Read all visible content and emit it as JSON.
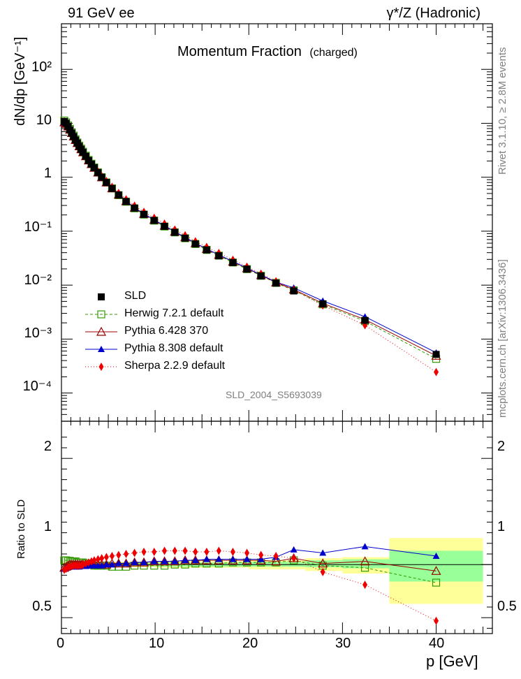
{
  "header": {
    "left": "91 GeV ee",
    "right": "γ*/Z (Hadronic)"
  },
  "title": "Momentum Fraction",
  "title_sub": "(charged)",
  "watermark": "SLD_2004_S5693039",
  "side_labels": {
    "rivet": "Rivet 3.1.10, ≥ 2.8M events",
    "mcplots": "mcplots.cern.ch [arXiv:1306.3436]"
  },
  "axes": {
    "top_ylabel": "dN/dp [GeV⁻¹]",
    "bottom_ylabel": "Ratio to SLD",
    "xlabel": "p [GeV]"
  },
  "legend": [
    {
      "label": "SLD",
      "color": "#000000",
      "marker": "filled-square",
      "dash": "none"
    },
    {
      "label": "Herwig 7.2.1 default",
      "color": "#339900",
      "marker": "open-square",
      "dash": "4,3"
    },
    {
      "label": "Pythia 6.428 370",
      "color": "#990000",
      "marker": "open-triangle",
      "dash": "none"
    },
    {
      "label": "Pythia 8.308 default",
      "color": "#0000cc",
      "marker": "filled-triangle",
      "dash": "none"
    },
    {
      "label": "Sherpa 2.2.9 default",
      "color": "#ee0000",
      "marker": "filled-diamond",
      "dash": "1,3"
    }
  ],
  "chart_data": [
    {
      "type": "scatter",
      "panel": "main",
      "x_scale": "linear",
      "y_scale": "log",
      "xlim": [
        0,
        46
      ],
      "ylim": [
        3e-05,
        700
      ],
      "xticks": [
        "0",
        "10",
        "20",
        "30",
        "40"
      ],
      "yticks": [
        "10⁻⁴",
        "10⁻³",
        "10⁻²",
        "10⁻¹",
        "1",
        "10",
        "10²"
      ],
      "x": [
        0.3,
        0.5,
        0.7,
        0.9,
        1.1,
        1.3,
        1.5,
        1.7,
        1.9,
        2.1,
        2.3,
        2.6,
        2.9,
        3.2,
        3.5,
        3.9,
        4.3,
        4.8,
        5.4,
        6.1,
        6.9,
        7.8,
        8.8,
        9.9,
        11.0,
        12.1,
        13.2,
        14.3,
        15.5,
        16.8,
        18.3,
        19.8,
        21.3,
        22.9,
        24.8,
        27.9,
        32.4,
        40.0
      ],
      "series": [
        {
          "name": "SLD",
          "values": [
            10.8,
            10.0,
            8.8,
            7.6,
            6.6,
            5.7,
            4.9,
            4.3,
            3.75,
            3.3,
            2.9,
            2.45,
            2.05,
            1.75,
            1.5,
            1.22,
            1.0,
            0.8,
            0.62,
            0.47,
            0.355,
            0.268,
            0.205,
            0.158,
            0.123,
            0.095,
            0.074,
            0.058,
            0.045,
            0.035,
            0.0262,
            0.0198,
            0.0148,
            0.0109,
            0.0078,
            0.0045,
            0.00222,
            0.00052
          ]
        },
        {
          "name": "Herwig 7.2.1 default",
          "values": [
            11.2,
            10.4,
            9.1,
            7.9,
            6.8,
            5.9,
            5.05,
            4.4,
            3.85,
            3.38,
            2.97,
            2.5,
            2.09,
            1.78,
            1.52,
            1.23,
            1.0,
            0.8,
            0.62,
            0.465,
            0.352,
            0.265,
            0.203,
            0.157,
            0.122,
            0.095,
            0.074,
            0.058,
            0.045,
            0.0352,
            0.0263,
            0.0198,
            0.0149,
            0.011,
            0.008,
            0.0044,
            0.00215,
            0.00043
          ]
        },
        {
          "name": "Pythia 6.428 370",
          "values": [
            10.4,
            9.8,
            8.7,
            7.6,
            6.6,
            5.7,
            4.9,
            4.3,
            3.75,
            3.3,
            2.9,
            2.45,
            2.05,
            1.75,
            1.5,
            1.22,
            1.0,
            0.8,
            0.625,
            0.475,
            0.36,
            0.273,
            0.209,
            0.162,
            0.126,
            0.098,
            0.077,
            0.06,
            0.047,
            0.0363,
            0.0272,
            0.0205,
            0.0153,
            0.0112,
            0.0083,
            0.0046,
            0.0023,
            0.00049
          ]
        },
        {
          "name": "Pythia 8.308 default",
          "values": [
            10.3,
            9.7,
            8.6,
            7.5,
            6.5,
            5.6,
            4.85,
            4.25,
            3.7,
            3.26,
            2.87,
            2.42,
            2.03,
            1.73,
            1.49,
            1.21,
            0.99,
            0.8,
            0.625,
            0.475,
            0.36,
            0.273,
            0.209,
            0.162,
            0.126,
            0.098,
            0.077,
            0.06,
            0.047,
            0.0364,
            0.0275,
            0.0208,
            0.0155,
            0.0114,
            0.0089,
            0.0051,
            0.0026,
            0.00056
          ]
        },
        {
          "name": "Sherpa 2.2.9 default",
          "values": [
            10.2,
            9.6,
            8.6,
            7.5,
            6.5,
            5.65,
            4.85,
            4.25,
            3.7,
            3.28,
            2.9,
            2.47,
            2.08,
            1.8,
            1.55,
            1.27,
            1.05,
            0.85,
            0.665,
            0.51,
            0.39,
            0.298,
            0.228,
            0.177,
            0.138,
            0.107,
            0.084,
            0.065,
            0.051,
            0.0395,
            0.0295,
            0.022,
            0.0163,
            0.0118,
            0.0082,
            0.0042,
            0.0018,
            0.000245
          ]
        }
      ]
    },
    {
      "type": "scatter",
      "panel": "ratio",
      "x_scale": "linear",
      "y_scale": "linear",
      "xlim": [
        0,
        46
      ],
      "ylim": [
        0.35,
        2.35
      ],
      "yticks": [
        "0.5",
        "1",
        "2"
      ],
      "x": [
        0.3,
        0.5,
        0.7,
        0.9,
        1.1,
        1.3,
        1.5,
        1.7,
        1.9,
        2.1,
        2.3,
        2.6,
        2.9,
        3.2,
        3.5,
        3.9,
        4.3,
        4.8,
        5.4,
        6.1,
        6.9,
        7.8,
        8.8,
        9.9,
        11.0,
        12.1,
        13.2,
        14.3,
        15.5,
        16.8,
        18.3,
        19.8,
        21.3,
        22.9,
        24.8,
        27.9,
        32.4,
        40.0
      ],
      "bands": [
        {
          "x_from": 0,
          "x_to": 10,
          "inner": [
            0.985,
            1.015
          ],
          "outer": [
            0.975,
            1.025
          ]
        },
        {
          "x_from": 10,
          "x_to": 20,
          "inner": [
            0.98,
            1.02
          ],
          "outer": [
            0.97,
            1.03
          ]
        },
        {
          "x_from": 20,
          "x_to": 26,
          "inner": [
            0.98,
            1.025
          ],
          "outer": [
            0.955,
            1.04
          ]
        },
        {
          "x_from": 26,
          "x_to": 30,
          "inner": [
            0.975,
            1.04
          ],
          "outer": [
            0.94,
            1.06
          ]
        },
        {
          "x_from": 30,
          "x_to": 35,
          "inner": [
            0.965,
            1.05
          ],
          "outer": [
            0.915,
            1.07
          ]
        },
        {
          "x_from": 35,
          "x_to": 45,
          "inner": [
            0.84,
            1.13
          ],
          "outer": [
            0.63,
            1.25
          ]
        }
      ],
      "series": [
        {
          "name": "Herwig 7.2.1 default",
          "values": [
            1.04,
            1.04,
            1.035,
            1.035,
            1.03,
            1.03,
            1.03,
            1.02,
            1.02,
            1.02,
            1.02,
            1.01,
            1.01,
            1.0,
            0.99,
            0.99,
            0.99,
            0.99,
            0.98,
            0.98,
            0.98,
            0.99,
            0.99,
            0.99,
            0.99,
            1.0,
            1.0,
            1.01,
            1.01,
            1.01,
            1.02,
            1.02,
            1.02,
            1.02,
            1.04,
            0.99,
            0.97,
            0.83
          ]
        },
        {
          "name": "Pythia 6.428 370",
          "values": [
            0.97,
            0.98,
            0.99,
            1.0,
            1.0,
            1.0,
            1.0,
            1.0,
            1.0,
            1.0,
            1.0,
            1.0,
            1.0,
            1.0,
            1.0,
            1.0,
            1.0,
            1.0,
            1.01,
            1.01,
            1.01,
            1.02,
            1.02,
            1.03,
            1.03,
            1.03,
            1.04,
            1.04,
            1.04,
            1.04,
            1.04,
            1.04,
            1.04,
            1.03,
            1.06,
            1.01,
            1.03,
            0.94
          ]
        },
        {
          "name": "Pythia 8.308 default",
          "values": [
            0.96,
            0.97,
            0.975,
            0.98,
            0.98,
            0.98,
            0.98,
            0.98,
            0.98,
            0.985,
            0.985,
            0.985,
            0.99,
            0.99,
            0.99,
            0.99,
            0.99,
            1.0,
            1.0,
            1.01,
            1.01,
            1.02,
            1.02,
            1.03,
            1.03,
            1.03,
            1.04,
            1.04,
            1.05,
            1.05,
            1.05,
            1.05,
            1.05,
            1.07,
            1.14,
            1.11,
            1.17,
            1.08
          ]
        },
        {
          "name": "Sherpa 2.2.9 default",
          "values": [
            0.95,
            0.96,
            0.975,
            0.98,
            0.985,
            0.99,
            0.99,
            0.99,
            0.99,
            0.99,
            1.0,
            1.01,
            1.02,
            1.03,
            1.04,
            1.05,
            1.06,
            1.07,
            1.08,
            1.09,
            1.1,
            1.11,
            1.12,
            1.12,
            1.13,
            1.13,
            1.13,
            1.12,
            1.12,
            1.13,
            1.12,
            1.11,
            1.09,
            1.08,
            1.06,
            0.93,
            0.81,
            0.47
          ]
        }
      ]
    }
  ]
}
